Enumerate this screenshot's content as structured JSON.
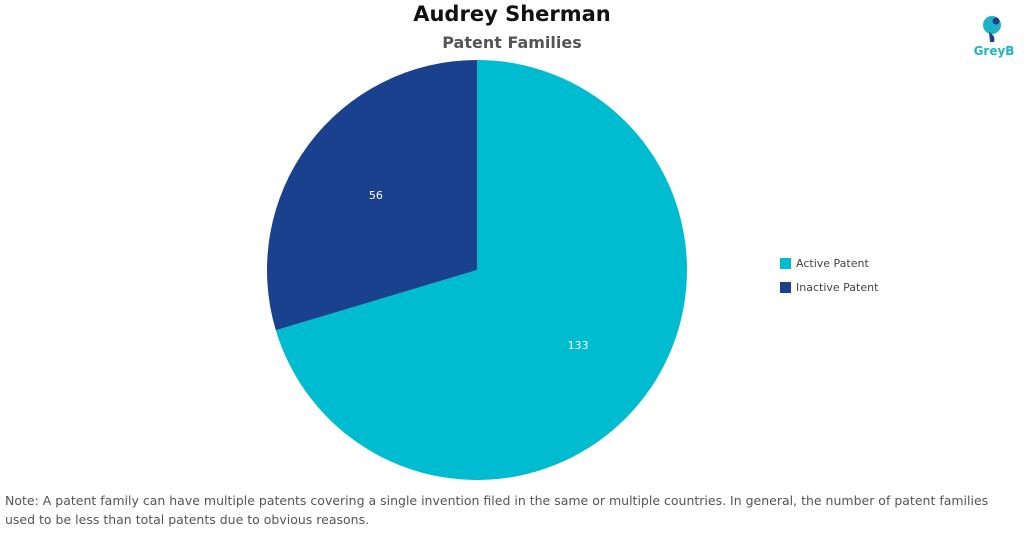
{
  "chart_data": {
    "type": "pie",
    "title": "Audrey Sherman",
    "subtitle": "Patent Families",
    "categories": [
      "Active Patent",
      "Inactive Patent"
    ],
    "values": [
      133,
      56
    ],
    "colors": [
      "#00bcd0",
      "#19418e"
    ],
    "data_labels": [
      "133",
      "56"
    ],
    "legend_position": "right"
  },
  "logo": {
    "text": "GreyB",
    "icon": "greyb-logo-icon"
  },
  "note": "Note: A patent family can have multiple patents covering a single invention filed in the same or multiple countries. In general, the number of patent families used to be less than total patents due to obvious reasons."
}
